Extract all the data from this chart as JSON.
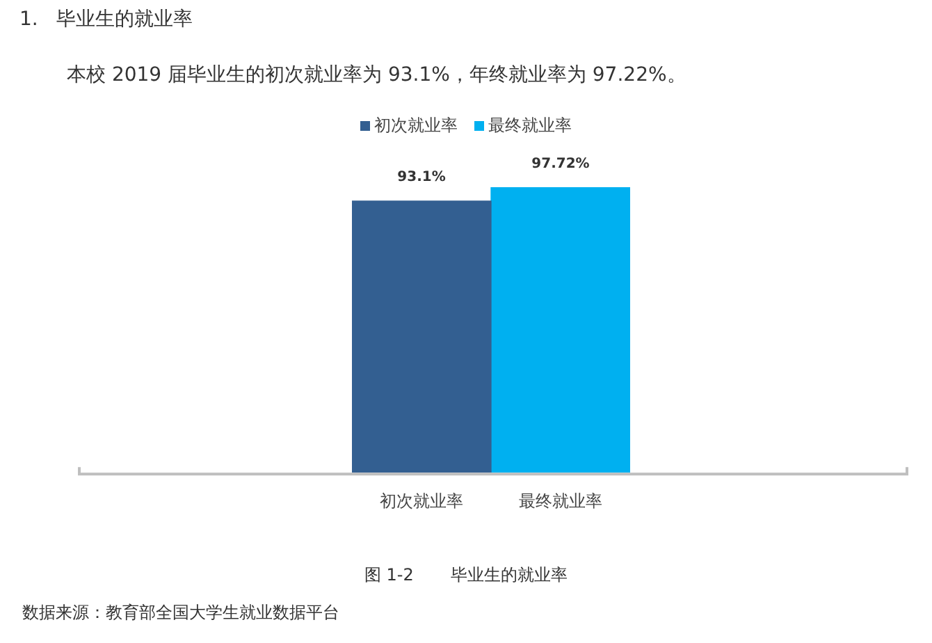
{
  "chart_data": {
    "type": "bar",
    "title": "1.   毕业生的就业率",
    "subtitle": "本校 2019 届毕业生的初次就业率为 93.1%，年终就业率为 97.22%。",
    "categories": [
      "初次就业率",
      "最终就业率"
    ],
    "series": [
      {
        "name": "初次就业率",
        "color": "#335f91",
        "values": [
          93.1,
          null
        ],
        "value_labels": [
          "93.1%",
          null
        ]
      },
      {
        "name": "最终就业率",
        "color": "#00b0f0",
        "values": [
          null,
          97.72
        ],
        "value_labels": [
          null,
          "97.72%"
        ]
      }
    ],
    "legend": "top",
    "grid": false,
    "tick_labels": "x",
    "annotations": [
      "图 1-2       毕业生的就业率",
      "数据来源：教育部全国大学生就业数据平台"
    ]
  }
}
